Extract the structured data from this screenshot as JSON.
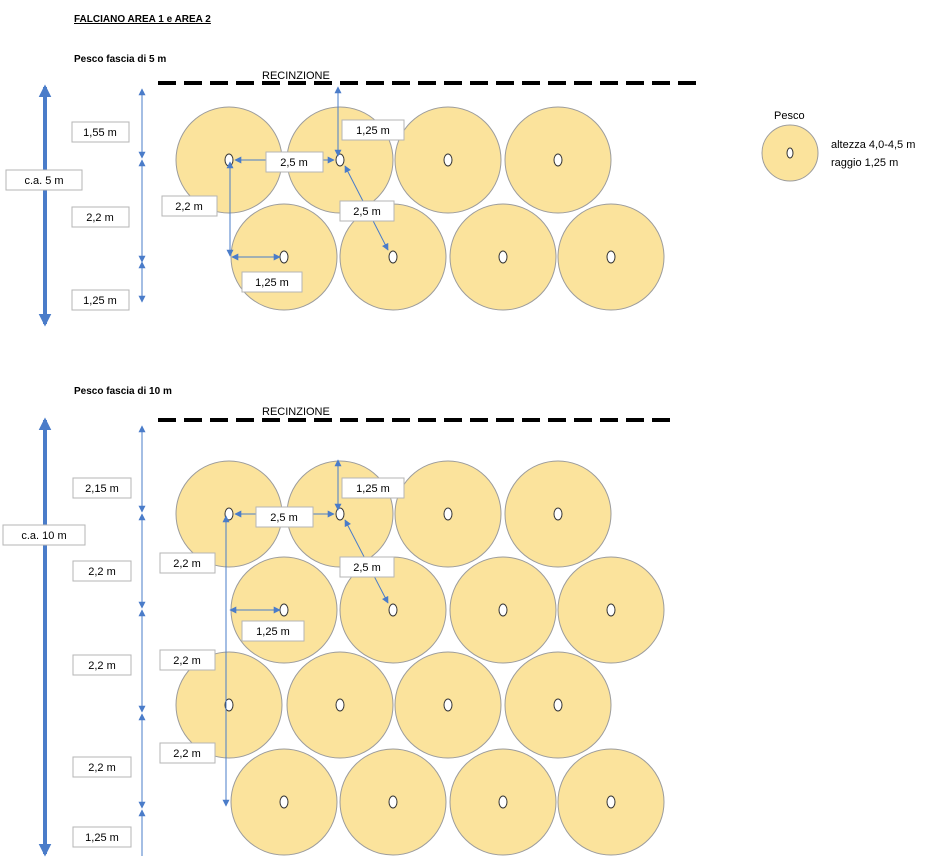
{
  "title": "FALCIANO  AREA 1 e AREA 2",
  "colors": {
    "canopy_fill": "#fbe39c",
    "canopy_stroke": "#9c9c9c",
    "dimension_arrow": "#4a7cc9",
    "fence": "#000000",
    "label_border": "#b5b5b5"
  },
  "legend": {
    "title": "Pesco",
    "lines": [
      "altezza 4,0-4,5 m",
      "raggio 1,25 m"
    ]
  },
  "sections": [
    {
      "heading": "Pesco fascia di 5 m",
      "fence_label": "RECINZIONE",
      "total_label": "c.a. 5 m",
      "row_spacing_labels": [
        "1,55 m",
        "2,2 m",
        "1,25 m"
      ],
      "rows": [
        {
          "trees": 4,
          "offset": "left"
        },
        {
          "trees": 4,
          "offset": "right"
        }
      ],
      "callouts": [
        "1,25 m",
        "2,5 m",
        "2,5 m",
        "2,2 m",
        "1,25 m"
      ]
    },
    {
      "heading": "Pesco fascia di 10 m",
      "fence_label": "RECINZIONE",
      "total_label": "c.a. 10 m",
      "row_spacing_labels": [
        "2,15 m",
        "2,2 m",
        "2,2 m",
        "2,2 m",
        "1,25 m"
      ],
      "rows": [
        {
          "trees": 4,
          "offset": "left"
        },
        {
          "trees": 4,
          "offset": "right"
        },
        {
          "trees": 4,
          "offset": "left"
        },
        {
          "trees": 4,
          "offset": "right"
        }
      ],
      "callouts": [
        "1,25 m",
        "2,5 m",
        "2,5 m",
        "2,2 m",
        "1,25 m",
        "2,2 m",
        "2,2 m"
      ]
    }
  ]
}
